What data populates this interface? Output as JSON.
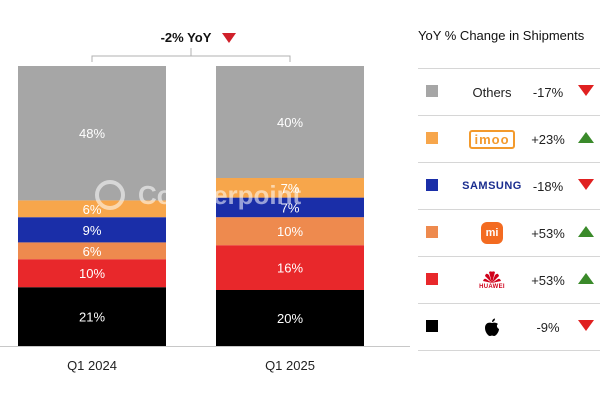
{
  "chart_data": {
    "type": "stacked-bar",
    "categories": [
      "Q1 2024",
      "Q1 2025"
    ],
    "series": [
      {
        "brand": "apple",
        "color": "#000000",
        "values": [
          21,
          20
        ]
      },
      {
        "brand": "huawei",
        "color": "#e8282b",
        "values": [
          10,
          16
        ]
      },
      {
        "brand": "xiaomi",
        "color": "#ee8a4e",
        "values": [
          6,
          10
        ]
      },
      {
        "brand": "samsung",
        "color": "#1a2ea8",
        "values": [
          9,
          7
        ]
      },
      {
        "brand": "imoo",
        "color": "#f7a64b",
        "values": [
          6,
          7
        ]
      },
      {
        "name": "Others",
        "color": "#a6a6a6",
        "values": [
          48,
          40
        ]
      }
    ],
    "ylim": [
      0,
      100
    ],
    "yoy_total": "-2% YoY",
    "yoy_direction": "down"
  },
  "legend": {
    "title": "YoY % Change in Shipments",
    "items": [
      {
        "label": "Others",
        "logo": "text",
        "change": "-17%",
        "direction": "down",
        "color": "#a6a6a6"
      },
      {
        "label": "imoo",
        "logo": "imoo-logo",
        "change": "+23%",
        "direction": "up",
        "color": "#f7a64b"
      },
      {
        "label": "SAMSUNG",
        "logo": "samsung-logo",
        "change": "-18%",
        "direction": "down",
        "color": "#1a2ea8"
      },
      {
        "label": "mi",
        "logo": "xiaomi-logo",
        "change": "+53%",
        "direction": "up",
        "color": "#ee8a4e"
      },
      {
        "label": "HUAWEI",
        "logo": "huawei-logo",
        "change": "+53%",
        "direction": "up",
        "color": "#e8282b"
      },
      {
        "label": "",
        "logo": "apple-logo",
        "change": "-9%",
        "direction": "down",
        "color": "#000000"
      }
    ]
  },
  "watermark": "Counterpoint"
}
